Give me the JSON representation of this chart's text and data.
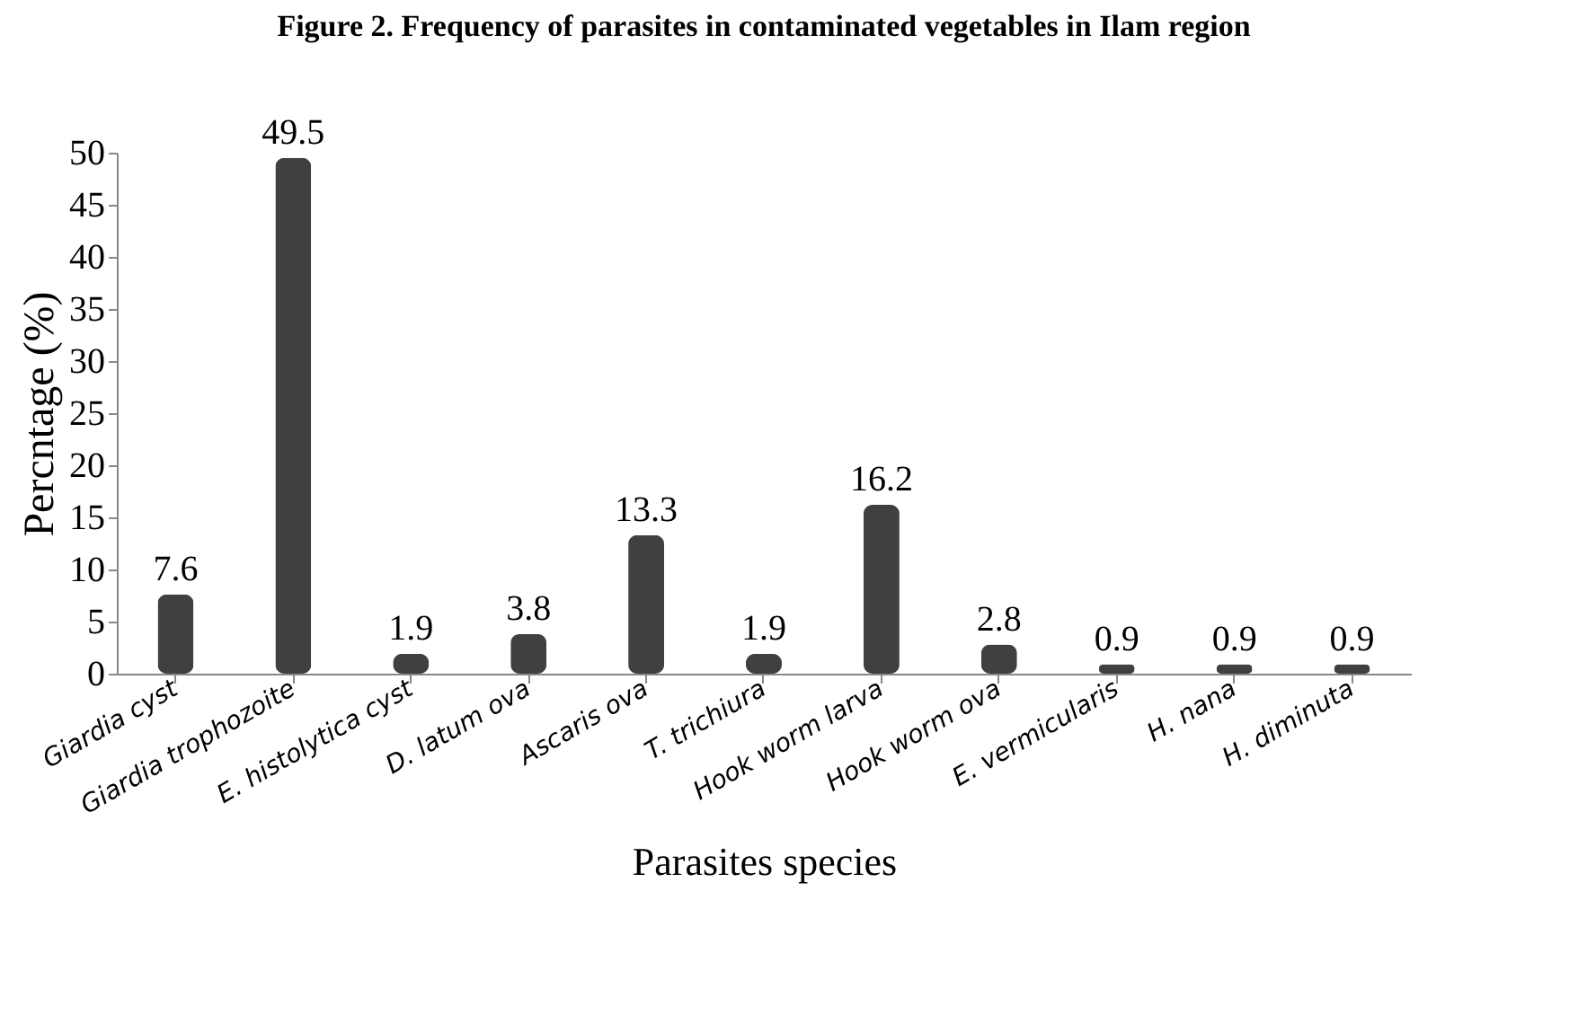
{
  "chart_data": {
    "type": "bar",
    "title": "Figure 2. Frequency of parasites in contaminated vegetables in Ilam region",
    "xlabel": "Parasites species",
    "ylabel": "Percntage (%)",
    "categories": [
      "Giardia cyst",
      "Giardia trophozoite",
      "E. histolytica cyst",
      "D. latum ova",
      "Ascaris ova",
      "T. trichiura",
      "Hook worm larva",
      "Hook worm ova",
      "E. vermicularis",
      "H. nana",
      "H. diminuta"
    ],
    "values": [
      7.6,
      49.5,
      1.9,
      3.8,
      13.3,
      1.9,
      16.2,
      2.8,
      0.9,
      0.9,
      0.9
    ],
    "color": "#404040",
    "ylim": [
      0,
      50
    ],
    "yticks": [
      0,
      5,
      10,
      15,
      20,
      25,
      30,
      35,
      40,
      45,
      50
    ],
    "data_labels": true,
    "grid": false
  }
}
